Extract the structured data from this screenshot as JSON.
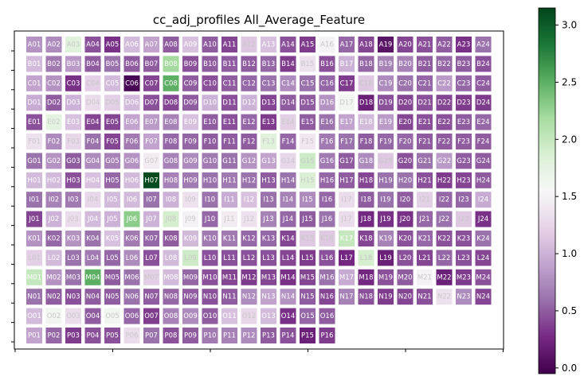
{
  "chart_data": {
    "type": "heatmap",
    "title": "cc_adj_profiles All_Average_Feature",
    "xlabel": "",
    "ylabel": "",
    "rows": [
      "A",
      "B",
      "C",
      "D",
      "E",
      "F",
      "G",
      "H",
      "I",
      "J",
      "K",
      "L",
      "M",
      "N",
      "O",
      "P"
    ],
    "columns": 24,
    "colormap": "PRGn",
    "vmin": -0.05,
    "vmax": 3.15,
    "colorbar_ticks": [
      "0.0",
      "0.5",
      "1.0",
      "1.5",
      "2.0",
      "2.5",
      "3.0"
    ],
    "colorbar_tick_values": [
      0.0,
      0.5,
      1.0,
      1.5,
      2.0,
      2.5,
      3.0
    ],
    "values": [
      [
        0.8,
        0.75,
        1.8,
        0.45,
        0.3,
        1.05,
        0.9,
        0.5,
        1.1,
        0.5,
        0.4,
        1.15,
        1.1,
        0.45,
        0.35,
        1.5,
        0.55,
        0.4,
        0.1,
        0.4,
        0.45,
        0.5,
        0.3,
        0.6
      ],
      [
        1.05,
        0.65,
        0.85,
        0.5,
        0.6,
        0.5,
        0.5,
        2.2,
        0.45,
        0.5,
        0.5,
        0.5,
        0.55,
        0.35,
        1.35,
        0.45,
        1.0,
        0.55,
        0.7,
        0.7,
        0.5,
        0.55,
        0.5,
        0.45
      ],
      [
        0.9,
        0.8,
        0.3,
        1.2,
        1.05,
        0.0,
        0.4,
        2.5,
        0.5,
        0.45,
        0.5,
        0.55,
        0.6,
        0.75,
        0.6,
        0.55,
        0.35,
        1.15,
        0.75,
        0.6,
        0.55,
        0.85,
        0.55,
        0.5
      ],
      [
        0.95,
        0.5,
        1.0,
        1.3,
        1.2,
        1.05,
        0.45,
        0.4,
        0.5,
        1.0,
        0.45,
        1.0,
        0.4,
        0.5,
        0.5,
        0.8,
        1.6,
        0.2,
        0.45,
        0.4,
        0.45,
        0.4,
        0.35,
        0.35
      ],
      [
        0.45,
        1.75,
        1.1,
        0.4,
        0.4,
        0.9,
        0.85,
        0.7,
        1.1,
        0.5,
        0.45,
        0.55,
        0.35,
        1.2,
        0.5,
        0.6,
        0.9,
        1.05,
        0.85,
        0.4,
        0.45,
        0.45,
        0.5,
        0.55
      ],
      [
        1.35,
        0.75,
        1.25,
        0.6,
        0.4,
        0.65,
        0.9,
        0.55,
        0.55,
        0.5,
        0.5,
        0.5,
        1.8,
        0.55,
        1.4,
        0.65,
        0.6,
        0.5,
        0.55,
        0.55,
        0.5,
        0.5,
        0.5,
        0.5
      ],
      [
        0.6,
        0.8,
        0.5,
        0.75,
        0.7,
        0.8,
        1.45,
        0.7,
        0.75,
        0.65,
        0.6,
        0.8,
        0.9,
        1.25,
        1.95,
        0.65,
        0.5,
        0.75,
        1.15,
        0.45,
        0.6,
        0.85,
        0.5,
        0.5
      ],
      [
        1.05,
        1.05,
        0.45,
        1.1,
        0.55,
        1.05,
        3.1,
        0.7,
        0.65,
        0.6,
        0.65,
        0.6,
        0.5,
        0.6,
        1.85,
        0.55,
        0.5,
        0.4,
        0.6,
        0.6,
        0.45,
        0.35,
        0.4,
        0.5
      ],
      [
        0.6,
        0.7,
        0.65,
        1.25,
        1.05,
        1.05,
        0.6,
        1.0,
        1.35,
        0.6,
        0.95,
        1.1,
        0.6,
        0.7,
        0.75,
        0.55,
        1.3,
        0.5,
        0.6,
        0.5,
        1.2,
        0.55,
        0.55,
        0.95
      ],
      [
        0.4,
        1.0,
        1.3,
        1.05,
        1.0,
        2.3,
        1.0,
        1.9,
        1.5,
        0.55,
        1.45,
        1.35,
        0.7,
        0.55,
        0.5,
        0.6,
        1.3,
        0.25,
        0.3,
        0.3,
        0.55,
        0.6,
        1.15,
        0.3
      ],
      [
        0.8,
        0.55,
        0.8,
        0.6,
        1.1,
        0.65,
        0.55,
        0.5,
        1.05,
        0.65,
        0.65,
        0.55,
        0.55,
        0.4,
        1.15,
        1.15,
        2.0,
        0.4,
        0.7,
        0.45,
        0.55,
        0.45,
        0.45,
        0.6
      ],
      [
        1.2,
        1.05,
        0.6,
        0.65,
        0.55,
        0.75,
        0.45,
        1.05,
        1.95,
        0.45,
        0.45,
        0.45,
        0.45,
        0.4,
        0.35,
        0.45,
        0.25,
        1.9,
        0.2,
        0.45,
        0.4,
        0.55,
        0.45,
        0.4
      ],
      [
        2.0,
        0.8,
        0.6,
        2.5,
        0.5,
        0.6,
        1.2,
        1.05,
        0.55,
        0.45,
        0.4,
        0.35,
        0.4,
        0.3,
        0.4,
        0.6,
        0.95,
        0.25,
        0.45,
        0.5,
        1.5,
        0.2,
        0.35,
        0.45
      ],
      [
        0.6,
        0.5,
        0.45,
        0.5,
        0.5,
        0.6,
        0.5,
        0.55,
        0.5,
        0.45,
        0.5,
        0.75,
        0.9,
        0.8,
        0.5,
        0.4,
        0.7,
        0.45,
        0.35,
        0.4,
        0.45,
        1.35,
        0.75,
        0.4
      ],
      [
        1.05,
        1.6,
        1.3,
        0.5,
        1.6,
        0.55,
        0.35,
        0.7,
        0.75,
        0.5,
        1.1,
        1.25,
        1.05,
        0.3,
        0.55,
        0.5,
        null,
        null,
        null,
        null,
        null,
        null,
        null,
        null
      ],
      [
        0.9,
        0.55,
        0.35,
        0.45,
        0.45,
        1.3,
        0.6,
        0.45,
        0.5,
        0.65,
        0.7,
        0.75,
        0.5,
        0.45,
        0.2,
        0.35,
        null,
        null,
        null,
        null,
        null,
        null,
        null,
        null
      ]
    ]
  }
}
